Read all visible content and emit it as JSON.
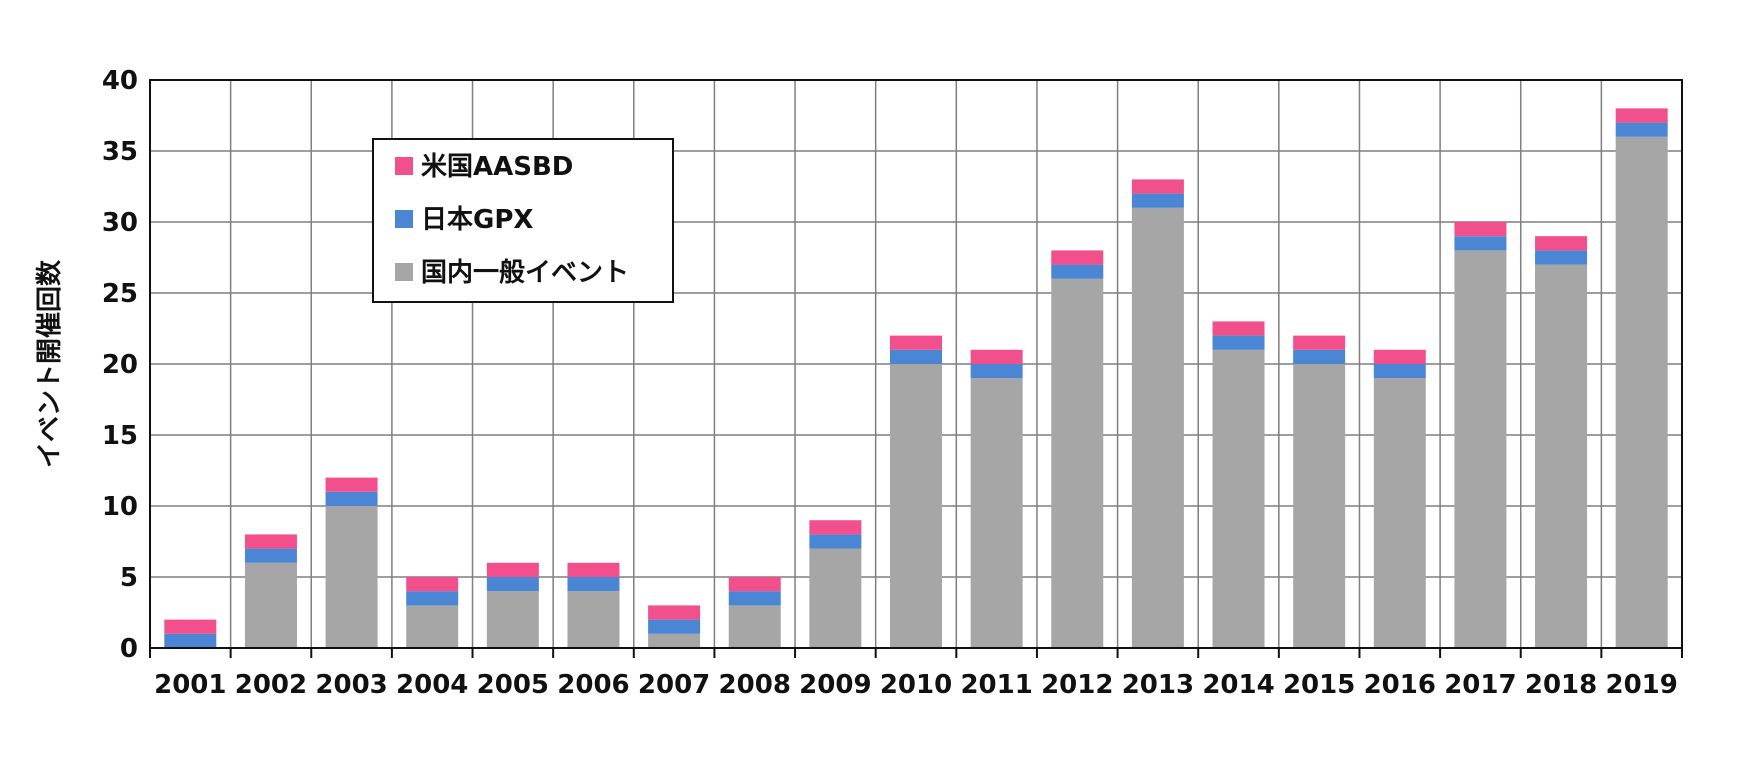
{
  "chart_data": {
    "type": "bar",
    "stacked": true,
    "ylabel": "イベント開催回数",
    "xlabel": "",
    "ylim": [
      0,
      40
    ],
    "yticks": [
      0,
      5,
      10,
      15,
      20,
      25,
      30,
      35,
      40
    ],
    "grid": true,
    "legend_position": "top-left",
    "categories": [
      "2001",
      "2002",
      "2003",
      "2004",
      "2005",
      "2006",
      "2007",
      "2008",
      "2009",
      "2010",
      "2011",
      "2012",
      "2013",
      "2014",
      "2015",
      "2016",
      "2017",
      "2018",
      "2019"
    ],
    "series": [
      {
        "name": "国内一般イベント",
        "color": "#a6a6a6",
        "values": [
          0,
          6,
          10,
          3,
          4,
          4,
          1,
          3,
          7,
          20,
          19,
          26,
          31,
          21,
          20,
          19,
          28,
          27,
          36
        ]
      },
      {
        "name": "日本GPX",
        "color": "#4a86d4",
        "values": [
          1,
          1,
          1,
          1,
          1,
          1,
          1,
          1,
          1,
          1,
          1,
          1,
          1,
          1,
          1,
          1,
          1,
          1,
          1
        ]
      },
      {
        "name": "米国AASBD",
        "color": "#f24f8d",
        "values": [
          1,
          1,
          1,
          1,
          1,
          1,
          1,
          1,
          1,
          1,
          1,
          1,
          1,
          1,
          1,
          1,
          1,
          1,
          1
        ]
      }
    ],
    "legend_order": [
      "米国AASBD",
      "日本GPX",
      "国内一般イベント"
    ]
  }
}
